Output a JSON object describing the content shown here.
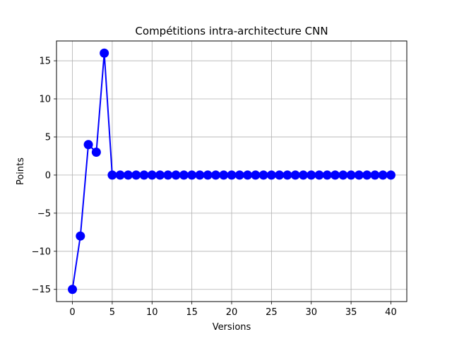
{
  "chart_data": {
    "type": "line",
    "title": "Compétitions intra-architecture CNN",
    "xlabel": "Versions",
    "ylabel": "Points",
    "xlim": [
      -2,
      42
    ],
    "ylim": [
      -16.6,
      17.6
    ],
    "xticks": [
      0,
      5,
      10,
      15,
      20,
      25,
      30,
      35,
      40
    ],
    "yticks": [
      -15,
      -10,
      -5,
      0,
      5,
      10,
      15
    ],
    "xtick_labels": [
      "0",
      "5",
      "10",
      "15",
      "20",
      "25",
      "30",
      "35",
      "40"
    ],
    "ytick_labels": [
      "−15",
      "−10",
      "−5",
      "0",
      "5",
      "10",
      "15"
    ],
    "grid": true,
    "legend": "none",
    "series": [
      {
        "color": "#0000ff",
        "marker": "circle",
        "x": [
          0,
          1,
          2,
          3,
          4,
          5,
          6,
          7,
          8,
          9,
          10,
          11,
          12,
          13,
          14,
          15,
          16,
          17,
          18,
          19,
          20,
          21,
          22,
          23,
          24,
          25,
          26,
          27,
          28,
          29,
          30,
          31,
          32,
          33,
          34,
          35,
          36,
          37,
          38,
          39,
          40
        ],
        "y": [
          -15,
          -8,
          4,
          3,
          16,
          0,
          0,
          0,
          0,
          0,
          0,
          0,
          0,
          0,
          0,
          0,
          0,
          0,
          0,
          0,
          0,
          0,
          0,
          0,
          0,
          0,
          0,
          0,
          0,
          0,
          0,
          0,
          0,
          0,
          0,
          0,
          0,
          0,
          0,
          0,
          0
        ]
      }
    ]
  }
}
